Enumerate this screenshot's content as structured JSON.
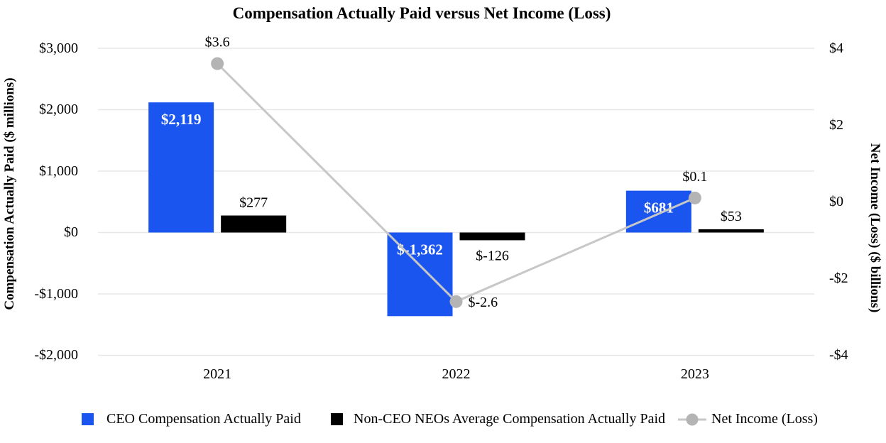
{
  "chart_data": {
    "type": "combo-bar-line",
    "title": "Compensation Actually Paid versus Net Income (Loss)",
    "categories": [
      "2021",
      "2022",
      "2023"
    ],
    "series": [
      {
        "name": "CEO Compensation Actually Paid",
        "type": "bar",
        "axis": "left",
        "color": "#1b55ef",
        "values": [
          2119,
          -1362,
          681
        ],
        "labels": [
          "$2,119",
          "$-1,362",
          "$681"
        ]
      },
      {
        "name": "Non-CEO NEOs Average Compensation Actually Paid",
        "type": "bar",
        "axis": "left",
        "color": "#000000",
        "values": [
          277,
          -126,
          53
        ],
        "labels": [
          "$277",
          "$-126",
          "$53"
        ]
      },
      {
        "name": "Net Income (Loss)",
        "type": "line",
        "axis": "right",
        "color": "#c7c7c7",
        "marker_color": "#b4b4b4",
        "values": [
          3.6,
          -2.6,
          0.1
        ],
        "labels": [
          "$3.6",
          "$-2.6",
          "$0.1"
        ],
        "label_positions": [
          "above",
          "right",
          "above"
        ]
      }
    ],
    "left_axis": {
      "label": "Compensation Actually Paid ($ millions)",
      "range": [
        3000,
        -2000
      ],
      "tick_values": [
        3000,
        2000,
        1000,
        0,
        -1000,
        -2000
      ],
      "tick_labels": [
        "$3,000",
        "$2,000",
        "$1,000",
        "$0",
        "-$1,000",
        "-$2,000"
      ]
    },
    "right_axis": {
      "label": "Net Income (Loss) ($ billions)",
      "range": [
        4,
        -4
      ],
      "tick_values": [
        4,
        2,
        0,
        -2,
        -4
      ],
      "tick_labels": [
        "$4",
        "$2",
        "$0",
        "-$2",
        "-$4"
      ]
    },
    "grid": true,
    "legend_position": "bottom"
  }
}
